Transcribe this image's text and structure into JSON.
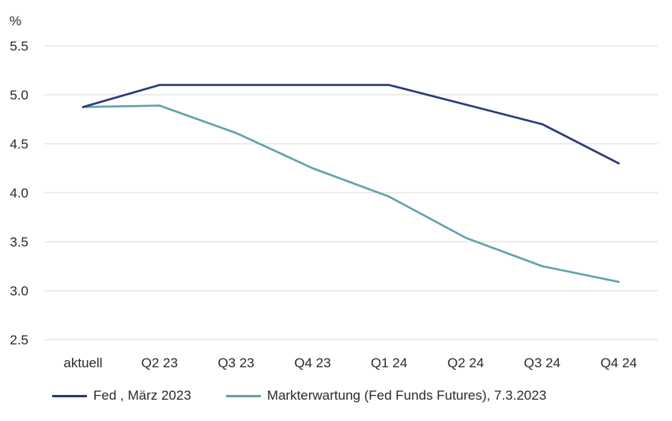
{
  "chart_data": {
    "type": "line",
    "unit": "%",
    "categories": [
      "aktuell",
      "Q2 23",
      "Q3 23",
      "Q4 23",
      "Q1 24",
      "Q2 24",
      "Q3 24",
      "Q4 24"
    ],
    "yticks": [
      "5.5",
      "5.0",
      "4.5",
      "4.0",
      "3.5",
      "3.0",
      "2.5"
    ],
    "ylim": [
      2.5,
      5.5
    ],
    "grid": true,
    "legend_position": "bottom",
    "series": [
      {
        "name": "Fed , März 2023",
        "color": "#2b3a7a",
        "values": [
          4.875,
          5.1,
          5.1,
          5.1,
          5.1,
          4.9,
          4.7,
          4.3
        ]
      },
      {
        "name": "Markterwartung (Fed Funds Futures), 7.3.2023",
        "color": "#5fa3ad",
        "values": [
          4.875,
          4.89,
          4.61,
          4.25,
          3.96,
          3.54,
          3.25,
          3.09
        ]
      }
    ]
  }
}
